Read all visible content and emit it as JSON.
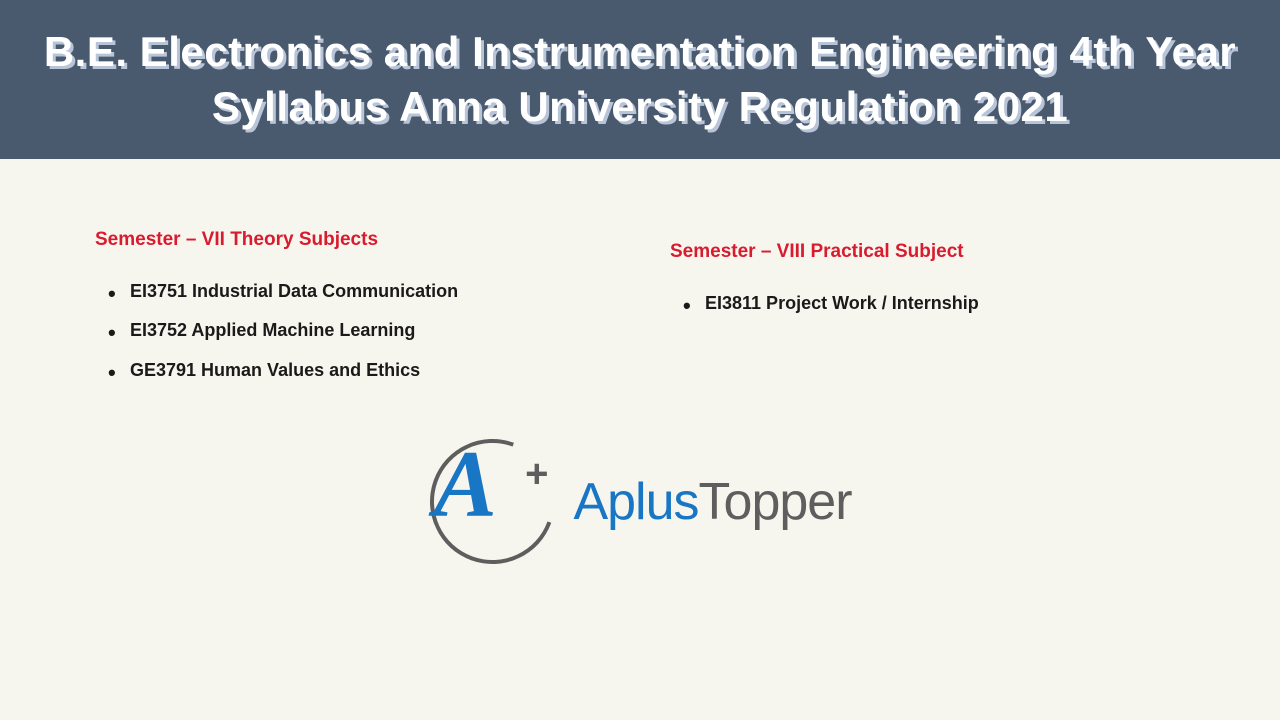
{
  "header": {
    "title": "B.E. Electronics and Instrumentation Engineering 4th Year Syllabus Anna University Regulation 2021",
    "background_color": "#49596e",
    "text_color": "#ffffff",
    "shadow_color": "#b8c4d8",
    "title_fontsize": 42
  },
  "page": {
    "background_color": "#f7f6ee"
  },
  "columns": {
    "left": {
      "heading": "Semester – VII Theory Subjects",
      "heading_color": "#d81b2e",
      "items": [
        "EI3751 Industrial Data Communication",
        "EI3752 Applied Machine Learning",
        "GE3791 Human Values and Ethics"
      ]
    },
    "right": {
      "heading": "Semester – VIII Practical Subject",
      "heading_color": "#d81b2e",
      "items": [
        "EI3811 Project Work / Internship"
      ]
    }
  },
  "logo": {
    "mark_letter": "A",
    "mark_plus": "+",
    "text_aplus": "Aplus",
    "text_topper": "Topper",
    "primary_color": "#1976c5",
    "secondary_color": "#5e5e5e"
  },
  "typography": {
    "heading_fontsize": 19,
    "list_fontsize": 18,
    "list_color": "#1a1a1a"
  }
}
